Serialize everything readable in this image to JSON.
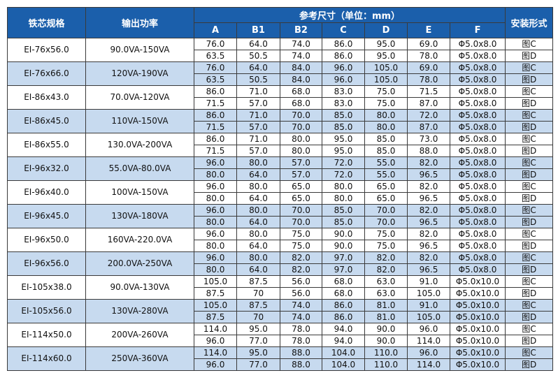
{
  "header": {
    "spec": "铁芯规格",
    "power": "输出功率",
    "dims_title": "参考尺寸（单位：mm）",
    "dims": [
      "A",
      "B1",
      "B2",
      "C",
      "D",
      "E",
      "F"
    ],
    "mount": "安装形式"
  },
  "groups": [
    {
      "spec": "EI-76x56.0",
      "power": "90.0VA-150VA",
      "rows": [
        [
          "76.0",
          "64.0",
          "74.0",
          "86.0",
          "95.0",
          "69.0",
          "Φ5.0x8.0",
          "图C"
        ],
        [
          "63.5",
          "50.5",
          "74.0",
          "86.0",
          "95.0",
          "78.0",
          "Φ5.0x8.0",
          "图D"
        ]
      ]
    },
    {
      "spec": "EI-76x66.0",
      "power": "120VA-190VA",
      "rows": [
        [
          "76.0",
          "64.0",
          "84.0",
          "96.0",
          "105.0",
          "69.0",
          "Φ5.0x8.0",
          "图C"
        ],
        [
          "63.5",
          "50.5",
          "84.0",
          "96.0",
          "105.0",
          "78.0",
          "Φ5.0x8.0",
          "图D"
        ]
      ]
    },
    {
      "spec": "EI-86x43.0",
      "power": "70.0VA-120VA",
      "rows": [
        [
          "86.0",
          "71.0",
          "68.0",
          "83.0",
          "75.0",
          "71.5",
          "Φ5.0x8.0",
          "图C"
        ],
        [
          "71.5",
          "57.0",
          "68.0",
          "83.0",
          "75.0",
          "87.0",
          "Φ5.0x8.0",
          "图D"
        ]
      ]
    },
    {
      "spec": "EI-86x45.0",
      "power": "110VA-150VA",
      "rows": [
        [
          "86.0",
          "71.0",
          "70.0",
          "85.0",
          "80.0",
          "72.0",
          "Φ5.0x8.0",
          "图C"
        ],
        [
          "71.5",
          "57.0",
          "70.0",
          "85.0",
          "80.0",
          "87.0",
          "Φ5.0x8.0",
          "图D"
        ]
      ]
    },
    {
      "spec": "EI-86x55.0",
      "power": "130.0VA-200VA",
      "rows": [
        [
          "86.0",
          "71.0",
          "80.0",
          "95.0",
          "85.0",
          "73.0",
          "Φ5.0x8.0",
          "图C"
        ],
        [
          "71.5",
          "57.0",
          "80.0",
          "95.0",
          "85.0",
          "88.0",
          "Φ5.0x8.0",
          "图D"
        ]
      ]
    },
    {
      "spec": "EI-96x32.0",
      "power": "55.0VA-80.0VA",
      "rows": [
        [
          "96.0",
          "80.0",
          "57.0",
          "72.0",
          "55.0",
          "82.0",
          "Φ5.0x8.0",
          "图C"
        ],
        [
          "80.0",
          "64.0",
          "57.0",
          "72.0",
          "55.0",
          "96.5",
          "Φ5.0x8.0",
          "图D"
        ]
      ]
    },
    {
      "spec": "EI-96x40.0",
      "power": "100VA-150VA",
      "rows": [
        [
          "96.0",
          "80.0",
          "65.0",
          "80.0",
          "65.0",
          "82.0",
          "Φ5.0x8.0",
          "图C"
        ],
        [
          "80.0",
          "64.0",
          "65.0",
          "80.0",
          "65.0",
          "96.5",
          "Φ5.0x8.0",
          "图D"
        ]
      ]
    },
    {
      "spec": "EI-96x45.0",
      "power": "130VA-180VA",
      "rows": [
        [
          "96.0",
          "80.0",
          "70.0",
          "85.0",
          "70.0",
          "82.0",
          "Φ5.0x8.0",
          "图C"
        ],
        [
          "80.0",
          "64.0",
          "70.0",
          "85.0",
          "70.0",
          "96.5",
          "Φ5.0x8.0",
          "图D"
        ]
      ]
    },
    {
      "spec": "EI-96x50.0",
      "power": "160VA-220.0VA",
      "rows": [
        [
          "96.0",
          "80.0",
          "75.0",
          "90.0",
          "75.0",
          "82.0",
          "Φ5.0x8.0",
          "图C"
        ],
        [
          "80.0",
          "64.0",
          "75.0",
          "90.0",
          "75.0",
          "96.5",
          "Φ5.0x8.0",
          "图D"
        ]
      ]
    },
    {
      "spec": "EI-96x56.0",
      "power": "200.0VA-250VA",
      "rows": [
        [
          "96.0",
          "80.0",
          "82.0",
          "97.0",
          "82.0",
          "82.0",
          "Φ5.0x8.0",
          "图C"
        ],
        [
          "80.0",
          "64.0",
          "82.0",
          "97.0",
          "82.0",
          "96.5",
          "Φ5.0x8.0",
          "图D"
        ]
      ]
    },
    {
      "spec": "EI-105x38.0",
      "power": "90.0VA-130VA",
      "rows": [
        [
          "105.0",
          "87.5",
          "56.0",
          "68.0",
          "63.0",
          "91.0",
          "Φ5.0x10.0",
          "图C"
        ],
        [
          "87.5",
          "70",
          "56.0",
          "68.0",
          "63.0",
          "105.0",
          "Φ5.0x10.0",
          "图D"
        ]
      ]
    },
    {
      "spec": "EI-105x56.0",
      "power": "130VA-280VA",
      "rows": [
        [
          "105.0",
          "87.5",
          "74.0",
          "86.0",
          "81.0",
          "91.0",
          "Φ5.0x10.0",
          "图C"
        ],
        [
          "87.5",
          "70",
          "74.0",
          "86.0",
          "81.0",
          "105.0",
          "Φ5.0x10.0",
          "图D"
        ]
      ]
    },
    {
      "spec": "EI-114x50.0",
      "power": "200VA-260VA",
      "rows": [
        [
          "114.0",
          "95.0",
          "78.0",
          "94.0",
          "90.0",
          "96.0",
          "Φ5.0x10.0",
          "图C"
        ],
        [
          "96.0",
          "77.0",
          "78.0",
          "94.0",
          "90.0",
          "114.0",
          "Φ5.0x10.0",
          "图D"
        ]
      ]
    },
    {
      "spec": "EI-114x60.0",
      "power": "250VA-360VA",
      "rows": [
        [
          "114.0",
          "95.0",
          "88.0",
          "104.0",
          "110.0",
          "96.0",
          "Φ5.0x10.0",
          "图C"
        ],
        [
          "96.0",
          "77.0",
          "88.0",
          "104.0",
          "110.0",
          "114.0",
          "Φ5.0x10.0",
          "图D"
        ]
      ]
    }
  ]
}
